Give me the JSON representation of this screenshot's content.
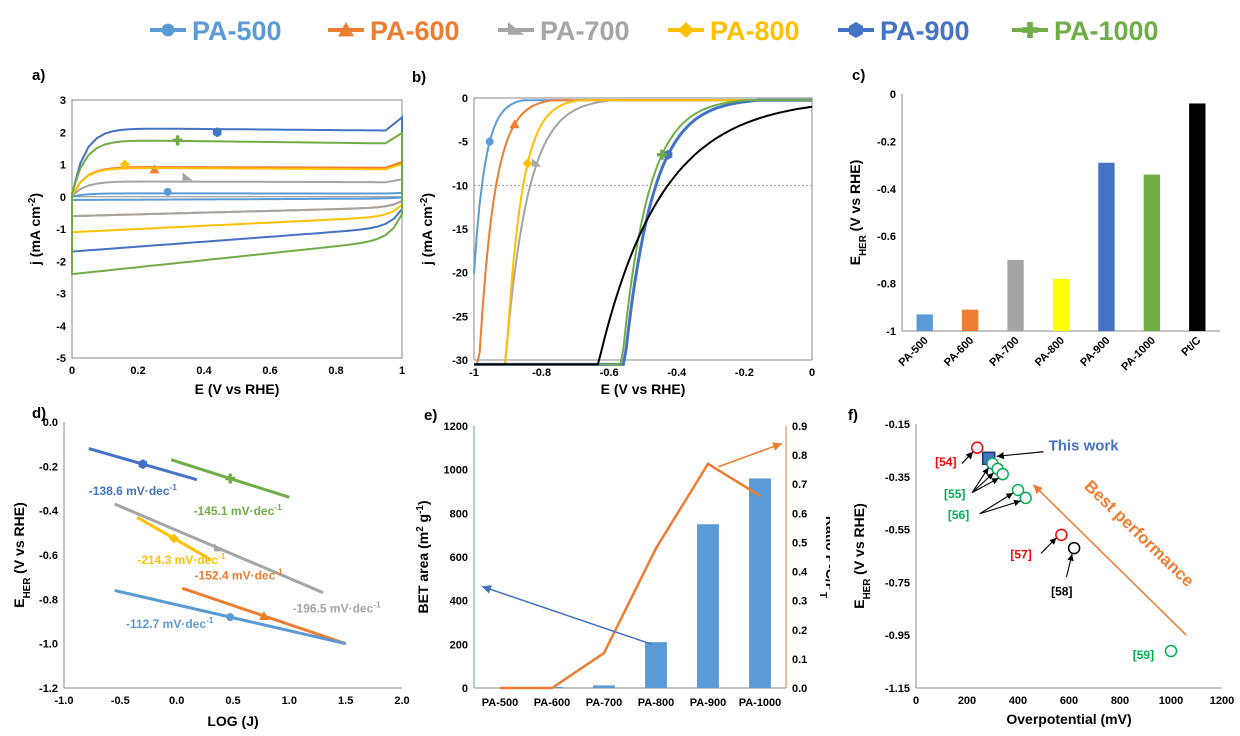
{
  "legend": [
    {
      "name": "PA-500",
      "color": "#5B9BD5",
      "marker": "circle"
    },
    {
      "name": "PA-600",
      "color": "#ED7D31",
      "marker": "triangle"
    },
    {
      "name": "PA-700",
      "color": "#A5A5A5",
      "marker": "triangle-right"
    },
    {
      "name": "PA-800",
      "color": "#FFC000",
      "marker": "diamond"
    },
    {
      "name": "PA-900",
      "color": "#4472C4",
      "marker": "hexagon"
    },
    {
      "name": "PA-1000",
      "color": "#70AD47",
      "marker": "plus"
    }
  ],
  "chart_data": [
    {
      "panel": "a)",
      "type": "line",
      "xlabel": "E (V vs RHE)",
      "ylabel": "j (mA cm-2)",
      "xlim": [
        0,
        1
      ],
      "ylim": [
        -5,
        3
      ],
      "xticks": [
        "0",
        "0.2",
        "0.4",
        "0.6",
        "0.8",
        "1"
      ],
      "yticks": [
        "3",
        "2",
        "1",
        "0",
        "-1",
        "-2",
        "-3",
        "-4",
        "-5"
      ],
      "series": [
        {
          "name": "PA-500",
          "upper": 0.1,
          "lower": -0.1,
          "marker": [
            0.29,
            0.15
          ]
        },
        {
          "name": "PA-600",
          "upper": 0.9,
          "lower": -0.6,
          "marker": [
            0.25,
            0.85
          ]
        },
        {
          "name": "PA-700",
          "upper": 0.45,
          "lower": -0.6,
          "marker": [
            0.35,
            0.6
          ]
        },
        {
          "name": "PA-800",
          "upper": 0.85,
          "lower": -1.1,
          "marker": [
            0.16,
            1.0
          ]
        },
        {
          "name": "PA-900",
          "upper": 2.05,
          "lower": -1.7,
          "marker": [
            0.44,
            2.0
          ]
        },
        {
          "name": "PA-1000",
          "upper": 1.65,
          "lower": -2.4,
          "marker": [
            0.32,
            1.75
          ]
        }
      ]
    },
    {
      "panel": "b)",
      "type": "line",
      "xlabel": "E (V vs RHE)",
      "ylabel": "j (mA cm-2)",
      "xlim": [
        -1,
        0
      ],
      "ylim": [
        -30,
        0
      ],
      "xticks": [
        "-1",
        "-0.8",
        "-0.6",
        "-0.4",
        "-0.2",
        "0"
      ],
      "yticks": [
        "0",
        "-5",
        "-10",
        "-15",
        "-20",
        "-25",
        "-30"
      ],
      "reference_line": -10,
      "series": [
        {
          "name": "PA-500",
          "onset": -0.9,
          "k": 30
        },
        {
          "name": "PA-600",
          "onset": -0.83,
          "k": 22
        },
        {
          "name": "PA-700",
          "onset": -0.68,
          "k": 15
        },
        {
          "name": "PA-800",
          "onset": -0.75,
          "k": 22
        },
        {
          "name": "PA-900",
          "onset": -0.27,
          "k": 12
        },
        {
          "name": "PA-1000",
          "onset": -0.3,
          "k": 13
        },
        {
          "name": "Pt/C",
          "onset": 0.0,
          "k": 5.4,
          "color": "#000000"
        }
      ]
    },
    {
      "panel": "c)",
      "type": "bar",
      "ylabel": "EHER (V vs RHE)",
      "ylim": [
        -1,
        0
      ],
      "yticks": [
        "0",
        "-0.2",
        "-0.4",
        "-0.6",
        "-0.8",
        "-1"
      ],
      "categories": [
        "PA-500",
        "PA-600",
        "PA-700",
        "PA-800",
        "PA-900",
        "PA-1000",
        "Pt/C"
      ],
      "values": [
        -0.93,
        -0.91,
        -0.7,
        -0.78,
        -0.29,
        -0.34,
        -0.04
      ],
      "colors": [
        "#5B9BD5",
        "#ED7D31",
        "#A5A5A5",
        "#FFFF00",
        "#4472C4",
        "#70AD47",
        "#000000"
      ]
    },
    {
      "panel": "d)",
      "type": "line",
      "xlabel": "LOG (J)",
      "ylabel": "EHER (V vs RHE)",
      "xlim": [
        -1,
        2
      ],
      "ylim": [
        -1.2,
        0
      ],
      "xticks": [
        "-1.0",
        "-0.5",
        "0.0",
        "0.5",
        "1.0",
        "1.5",
        "2.0"
      ],
      "yticks": [
        "0.0",
        "-0.2",
        "-0.4",
        "-0.6",
        "-0.8",
        "-1.0",
        "-1.2"
      ],
      "series": [
        {
          "name": "PA-900",
          "x": [
            -0.78,
            0.18
          ],
          "y": [
            -0.12,
            -0.26
          ],
          "label": "-138.6 mV·dec-1"
        },
        {
          "name": "PA-1000",
          "x": [
            -0.05,
            1.0
          ],
          "y": [
            -0.17,
            -0.34
          ],
          "label": "-145.1 mV·dec-1"
        },
        {
          "name": "PA-800",
          "x": [
            -0.35,
            0.3
          ],
          "y": [
            -0.43,
            -0.62
          ],
          "label": "-214.3 mV·dec-1"
        },
        {
          "name": "PA-700",
          "x": [
            -0.55,
            1.3
          ],
          "y": [
            -0.37,
            -0.77
          ],
          "label": "-196.5 mV·dec-1"
        },
        {
          "name": "PA-600",
          "x": [
            0.05,
            1.5
          ],
          "y": [
            -0.75,
            -1.0
          ],
          "label": "-152.4 mV·dec-1"
        },
        {
          "name": "PA-500",
          "x": [
            -0.55,
            1.5
          ],
          "y": [
            -0.76,
            -1.0
          ],
          "label": "-112.7 mV·dec-1"
        }
      ]
    },
    {
      "panel": "e)",
      "type": "bar",
      "ylabel": "BET area (m2 g-1)",
      "y2label": "Ratio P-C/PT",
      "ylim": [
        0,
        1200
      ],
      "y2lim": [
        0,
        0.9
      ],
      "yticks": [
        "0",
        "200",
        "400",
        "600",
        "800",
        "1000",
        "1200"
      ],
      "y2ticks": [
        "0.0",
        "0.1",
        "0.2",
        "0.3",
        "0.4",
        "0.5",
        "0.6",
        "0.7",
        "0.8",
        "0.9"
      ],
      "categories": [
        "PA-500",
        "PA-600",
        "PA-700",
        "PA-800",
        "PA-900",
        "PA-1000"
      ],
      "values": [
        0,
        5,
        12,
        210,
        750,
        960
      ],
      "ratio": [
        0.0,
        0.0,
        0.12,
        0.48,
        0.77,
        0.66
      ]
    },
    {
      "panel": "f)",
      "type": "scatter",
      "xlabel": "Overpotential (mV)",
      "ylabel": "EHER (V vs RHE)",
      "xlim": [
        0,
        1200
      ],
      "ylim": [
        -1.15,
        -0.15
      ],
      "xticks": [
        "0",
        "200",
        "400",
        "600",
        "800",
        "1000",
        "1200"
      ],
      "yticks": [
        "-0.15",
        "-0.35",
        "-0.55",
        "-0.75",
        "-0.95",
        "-1.15"
      ],
      "points": [
        {
          "label": "[54]",
          "x": 240,
          "y": -0.24,
          "color": "#FF0000"
        },
        {
          "label": "This work",
          "x": 285,
          "y": -0.28,
          "color": "#4472C4"
        },
        {
          "label": "[55]",
          "x": 300,
          "y": -0.3,
          "color": "#00B050"
        },
        {
          "label": "[55]",
          "x": 320,
          "y": -0.32,
          "color": "#00B050"
        },
        {
          "label": "[55]",
          "x": 340,
          "y": -0.34,
          "color": "#00B050"
        },
        {
          "label": "[56]",
          "x": 400,
          "y": -0.4,
          "color": "#00B050"
        },
        {
          "label": "[56]",
          "x": 430,
          "y": -0.43,
          "color": "#00B050"
        },
        {
          "label": "[57]",
          "x": 570,
          "y": -0.57,
          "color": "#FF0000"
        },
        {
          "label": "[58]",
          "x": 620,
          "y": -0.62,
          "color": "#000000"
        },
        {
          "label": "[59]",
          "x": 1000,
          "y": -1.01,
          "color": "#00B050"
        }
      ],
      "annotation": "Best performance"
    }
  ]
}
